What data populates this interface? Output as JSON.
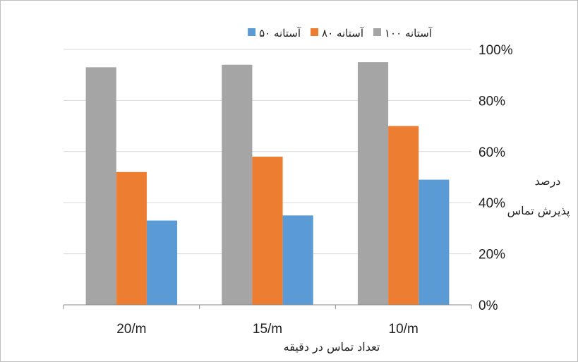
{
  "chart_data": {
    "type": "bar",
    "categories": [
      "20/m",
      "15/m",
      "10/m"
    ],
    "series": [
      {
        "name": "آستانه ۱۰۰",
        "color": "#a5a5a5",
        "values": [
          93,
          94,
          95
        ]
      },
      {
        "name": "آستانه ۸۰",
        "color": "#ed7d31",
        "values": [
          52,
          58,
          70
        ]
      },
      {
        "name": "آستانه ۵۰",
        "color": "#5b9bd5",
        "values": [
          33,
          35,
          49
        ]
      }
    ],
    "ylim": [
      0,
      100
    ],
    "yticks": [
      "0%",
      "20%",
      "40%",
      "60%",
      "80%",
      "100%"
    ],
    "ylabel_line1": "درصد",
    "ylabel_line2": "پذیرش تماس",
    "xlabel": "تعداد تماس در دقیقه",
    "y_axis_side": "right",
    "legend_position": "top",
    "grid": true
  }
}
